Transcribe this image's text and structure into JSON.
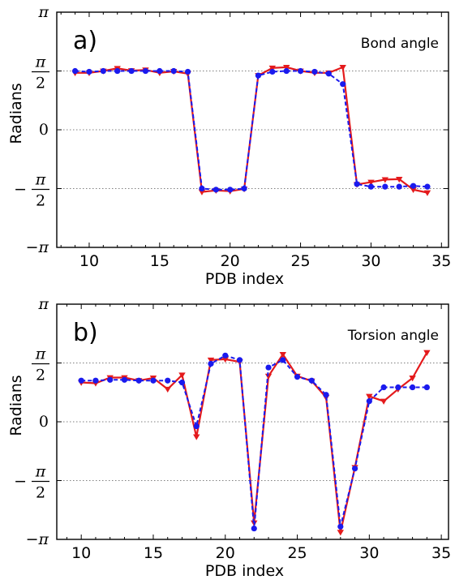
{
  "chart_data": [
    {
      "type": "line",
      "panel_label": "a)",
      "title": "Bond angle",
      "xlabel": "PDB index",
      "ylabel": "Radians",
      "xlim": [
        7.7,
        35.5
      ],
      "ylim": [
        -3.14159,
        3.14159
      ],
      "xticks": [
        10,
        15,
        20,
        25,
        30,
        35
      ],
      "yticks": [
        {
          "value": 3.14159,
          "label": "π"
        },
        {
          "value": 1.5708,
          "label": "π/2"
        },
        {
          "value": 0,
          "label": "0"
        },
        {
          "value": -1.5708,
          "label": "−π/2"
        },
        {
          "value": -3.14159,
          "label": "−π"
        }
      ],
      "grid": "dotted at π/2, 0, −π/2",
      "series": [
        {
          "color": "#e41a1c",
          "style": "solid",
          "marker": "triangle-down",
          "x": [
            9,
            10,
            11,
            12,
            13,
            14,
            15,
            16,
            17,
            18,
            19,
            20,
            21,
            22,
            23,
            24,
            25,
            26,
            27,
            28,
            29,
            30,
            31,
            32,
            33,
            34
          ],
          "y": [
            1.52,
            1.52,
            1.57,
            1.64,
            1.58,
            1.6,
            1.52,
            1.56,
            1.5,
            -1.66,
            -1.62,
            -1.64,
            -1.58,
            1.45,
            1.65,
            1.67,
            1.57,
            1.52,
            1.52,
            1.67,
            -1.46,
            -1.4,
            -1.33,
            -1.32,
            -1.6,
            -1.68
          ]
        },
        {
          "color": "#1a1aee",
          "style": "dashed",
          "marker": "circle",
          "x": [
            9,
            10,
            11,
            12,
            13,
            14,
            15,
            16,
            17,
            18,
            19,
            20,
            21,
            22,
            23,
            24,
            25,
            26,
            27,
            28,
            29,
            30,
            31,
            32,
            33,
            34
          ],
          "y": [
            1.57,
            1.55,
            1.57,
            1.57,
            1.57,
            1.57,
            1.57,
            1.57,
            1.55,
            -1.57,
            -1.6,
            -1.6,
            -1.57,
            1.45,
            1.55,
            1.57,
            1.57,
            1.55,
            1.5,
            1.22,
            -1.45,
            -1.52,
            -1.52,
            -1.52,
            -1.5,
            -1.52
          ]
        }
      ]
    },
    {
      "type": "line",
      "panel_label": "b)",
      "title": "Torsion angle",
      "xlabel": "PDB index",
      "ylabel": "Radians",
      "xlim": [
        8.3,
        35.5
      ],
      "ylim": [
        -3.14159,
        3.14159
      ],
      "xticks": [
        10,
        15,
        20,
        25,
        30,
        35
      ],
      "yticks": [
        {
          "value": 3.14159,
          "label": "π"
        },
        {
          "value": 1.5708,
          "label": "π/2"
        },
        {
          "value": 0,
          "label": "0"
        },
        {
          "value": -1.5708,
          "label": "−π/2"
        },
        {
          "value": -3.14159,
          "label": "−π"
        }
      ],
      "grid": "dotted at π/2, 0, −π/2",
      "series": [
        {
          "color": "#e41a1c",
          "style": "solid",
          "marker": "triangle-down",
          "x": [
            10,
            11,
            12,
            13,
            14,
            15,
            16,
            17,
            18,
            19,
            20,
            21,
            22,
            23,
            24,
            25,
            26,
            27,
            28,
            29,
            30,
            31,
            32,
            33,
            34
          ],
          "y": [
            1.05,
            1.03,
            1.18,
            1.18,
            1.1,
            1.17,
            0.87,
            1.25,
            -0.4,
            1.65,
            1.67,
            1.6,
            -2.7,
            1.22,
            1.8,
            1.22,
            1.09,
            0.65,
            -2.95,
            -1.22,
            0.68,
            0.55,
            0.87,
            1.17,
            1.85
          ]
        },
        {
          "color": "#1a1aee",
          "style": "dashed",
          "marker": "circle",
          "x": [
            10,
            11,
            12,
            13,
            14,
            15,
            16,
            17,
            18,
            19,
            20,
            21,
            22,
            23,
            24,
            25,
            26,
            27,
            28,
            29,
            30,
            31,
            32,
            33,
            34
          ],
          "y": [
            1.1,
            1.1,
            1.12,
            1.12,
            1.1,
            1.1,
            1.1,
            1.05,
            -0.12,
            1.55,
            1.77,
            1.65,
            -2.85,
            1.45,
            1.65,
            1.2,
            1.1,
            0.72,
            -2.8,
            -1.25,
            0.55,
            0.92,
            0.92,
            0.92,
            0.92
          ]
        }
      ]
    }
  ]
}
